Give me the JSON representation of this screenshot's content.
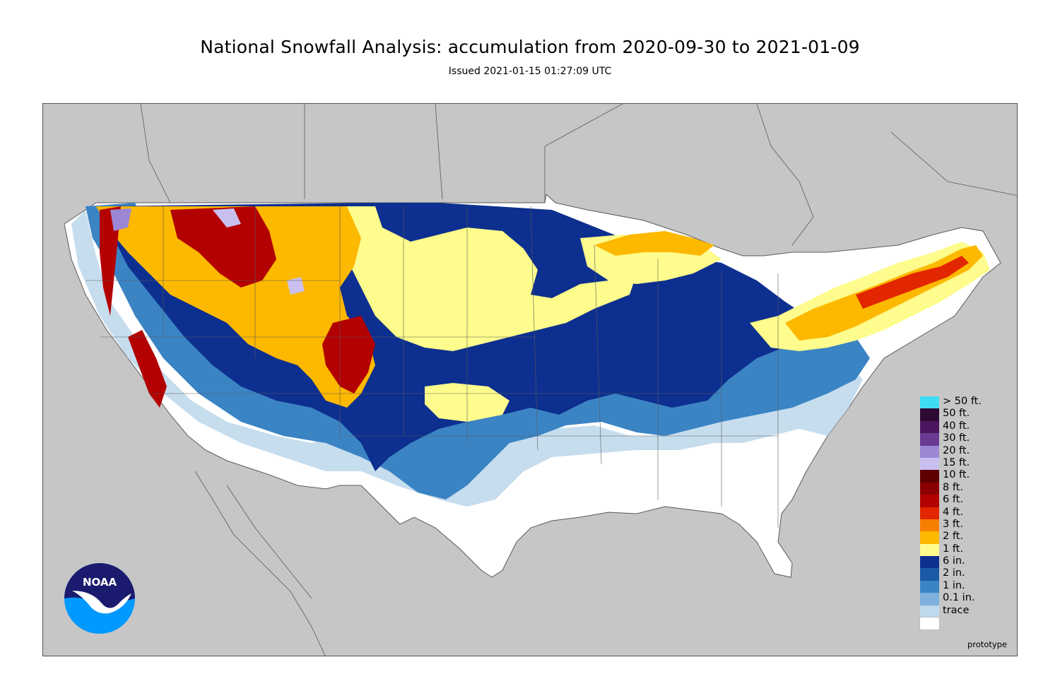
{
  "title": "National Snowfall Analysis: accumulation from 2020-09-30 to 2021-01-09",
  "subtitle": "Issued 2021-01-15 01:27:09 UTC",
  "footer_note": "prototype",
  "logo": {
    "name": "noaa-logo",
    "text": "NOAA"
  },
  "colors": {
    "background_land": "#c6c6c6",
    "boundary": "#5a5a5a"
  },
  "legend": [
    {
      "label": "> 50 ft.",
      "color": "#3fdcf4"
    },
    {
      "label": "50 ft.",
      "color": "#2d0a33"
    },
    {
      "label": "40 ft.",
      "color": "#4c155e"
    },
    {
      "label": "30 ft.",
      "color": "#6a3a92"
    },
    {
      "label": "20 ft.",
      "color": "#9b87d3"
    },
    {
      "label": "15 ft.",
      "color": "#c9c0ef"
    },
    {
      "label": "10 ft.",
      "color": "#5e0000"
    },
    {
      "label": "8 ft.",
      "color": "#8a0000"
    },
    {
      "label": "6 ft.",
      "color": "#b30000"
    },
    {
      "label": "4 ft.",
      "color": "#e22600"
    },
    {
      "label": "3 ft.",
      "color": "#f77f00"
    },
    {
      "label": "2 ft.",
      "color": "#fdb800"
    },
    {
      "label": "1 ft.",
      "color": "#fdfc8c"
    },
    {
      "label": "6 in.",
      "color": "#0d2f8f"
    },
    {
      "label": "2 in.",
      "color": "#1a5aa8"
    },
    {
      "label": "1 in.",
      "color": "#3b84c4"
    },
    {
      "label": "0.1 in.",
      "color": "#7db0dd"
    },
    {
      "label": "trace",
      "color": "#c0d9ec"
    },
    {
      "label": "",
      "color": "#ffffff"
    }
  ]
}
